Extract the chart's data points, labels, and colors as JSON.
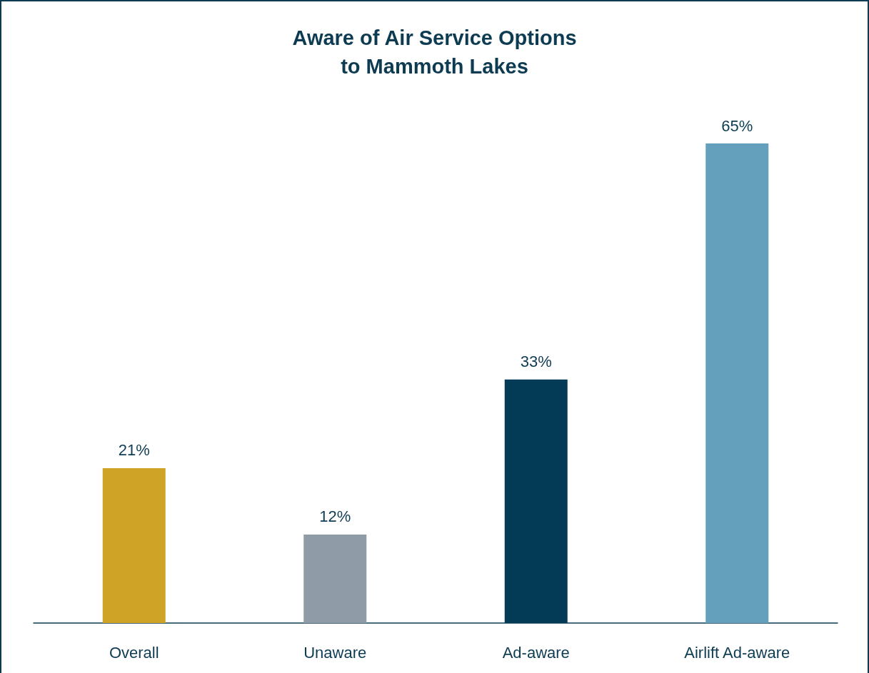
{
  "chart_data": {
    "type": "bar",
    "title": "Aware of Air Service Options\nto Mammoth Lakes",
    "categories": [
      "Overall",
      "Unaware",
      "Ad-aware",
      "Airlift Ad-aware"
    ],
    "values": [
      21,
      12,
      33,
      65
    ],
    "colors": [
      "#cfa325",
      "#8f9ba6",
      "#033a55",
      "#64a0bb"
    ],
    "value_labels": [
      "21%",
      "12%",
      "33%",
      "65%"
    ]
  }
}
